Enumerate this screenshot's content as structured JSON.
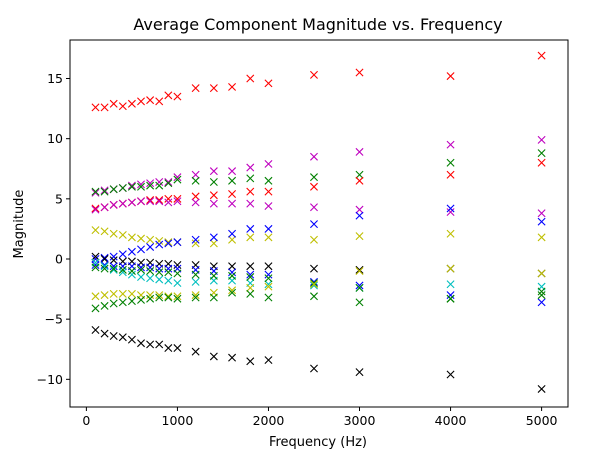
{
  "chart_data": {
    "type": "scatter",
    "title": "Average Component Magnitude vs. Frequency",
    "xlabel": "Frequency (Hz)",
    "ylabel": "Magnitude",
    "xlim": [
      -180,
      5290
    ],
    "ylim": [
      -12.3,
      18.2
    ],
    "xticks": [
      0,
      1000,
      2000,
      3000,
      4000,
      5000
    ],
    "xtick_labels": [
      "0",
      "1000",
      "2000",
      "3000",
      "4000",
      "5000"
    ],
    "yticks": [
      -10,
      -5,
      0,
      5,
      10,
      15
    ],
    "ytick_labels": [
      "−10",
      "−5",
      "0",
      "5",
      "10",
      "15"
    ],
    "grid": false,
    "marker": "x",
    "x": [
      100,
      200,
      300,
      400,
      500,
      600,
      700,
      800,
      900,
      1000,
      1200,
      1400,
      1600,
      1800,
      2000,
      2500,
      3000,
      4000,
      5000
    ],
    "series": [
      {
        "color": "#ff0000",
        "values": [
          12.6,
          12.6,
          12.9,
          12.7,
          12.9,
          13.1,
          13.2,
          13.1,
          13.6,
          13.5,
          14.2,
          14.2,
          14.3,
          15.0,
          14.6,
          15.3,
          15.5,
          15.2,
          16.9
        ]
      },
      {
        "color": "#bf00bf",
        "values": [
          5.5,
          5.7,
          5.8,
          5.9,
          6.1,
          6.2,
          6.3,
          6.4,
          6.4,
          6.8,
          7.0,
          7.3,
          7.3,
          7.6,
          7.9,
          8.5,
          8.9,
          9.5,
          9.9
        ]
      },
      {
        "color": "#008000",
        "values": [
          5.6,
          5.6,
          5.8,
          5.9,
          6.0,
          6.0,
          6.1,
          6.1,
          6.3,
          6.6,
          6.5,
          6.4,
          6.5,
          6.7,
          6.5,
          6.8,
          7.0,
          8.0,
          8.8
        ]
      },
      {
        "color": "#ff0000",
        "values": [
          4.2,
          4.3,
          4.5,
          4.6,
          4.7,
          4.8,
          4.9,
          4.9,
          5.0,
          5.0,
          5.2,
          5.3,
          5.4,
          5.6,
          5.6,
          6.0,
          6.5,
          7.0,
          8.0
        ]
      },
      {
        "color": "#bf00bf",
        "values": [
          4.1,
          4.3,
          4.5,
          4.6,
          4.7,
          4.8,
          4.8,
          4.8,
          4.7,
          4.8,
          4.7,
          4.6,
          4.6,
          4.6,
          4.4,
          4.3,
          4.1,
          3.9,
          3.8
        ]
      },
      {
        "color": "#bfbf00",
        "values": [
          2.4,
          2.3,
          2.1,
          2.0,
          1.8,
          1.7,
          1.6,
          1.5,
          1.4,
          1.4,
          1.3,
          1.3,
          1.6,
          1.8,
          1.8,
          1.6,
          1.9,
          2.1,
          1.8
        ]
      },
      {
        "color": "#0000ff",
        "values": [
          0.0,
          0.1,
          0.2,
          0.4,
          0.6,
          0.8,
          1.0,
          1.2,
          1.3,
          1.4,
          1.6,
          1.8,
          2.1,
          2.5,
          2.5,
          2.9,
          3.6,
          4.2,
          3.1
        ]
      },
      {
        "color": "#000000",
        "values": [
          0.2,
          0.0,
          -0.1,
          -0.2,
          -0.2,
          -0.3,
          -0.3,
          -0.4,
          -0.4,
          -0.5,
          -0.5,
          -0.6,
          -0.6,
          -0.6,
          -0.6,
          -0.8,
          -0.9,
          -0.8,
          -1.2
        ]
      },
      {
        "color": "#0000ff",
        "values": [
          -0.5,
          -0.5,
          -0.6,
          -0.6,
          -0.6,
          -0.7,
          -0.7,
          -0.8,
          -0.8,
          -0.8,
          -0.9,
          -1.0,
          -1.1,
          -1.3,
          -1.3,
          -1.9,
          -2.2,
          -3.0,
          -3.6
        ]
      },
      {
        "color": "#00bfbf",
        "values": [
          -0.3,
          -0.6,
          -0.9,
          -1.1,
          -1.3,
          -1.5,
          -1.6,
          -1.7,
          -1.8,
          -2.0,
          -1.9,
          -1.8,
          -1.8,
          -2.0,
          -2.1,
          -2.2,
          -2.4,
          -2.1,
          -2.3
        ]
      },
      {
        "color": "#008000",
        "values": [
          -0.7,
          -0.8,
          -0.8,
          -0.9,
          -1.0,
          -0.9,
          -1.0,
          -1.1,
          -1.1,
          -1.2,
          -1.3,
          -1.4,
          -1.4,
          -1.5,
          -1.6,
          -2.0,
          -2.4,
          -3.3,
          -3.0
        ]
      },
      {
        "color": "#bfbf00",
        "values": [
          -3.1,
          -3.0,
          -2.9,
          -2.9,
          -2.9,
          -3.0,
          -3.0,
          -3.0,
          -3.1,
          -3.1,
          -3.0,
          -2.8,
          -2.6,
          -2.4,
          -2.3,
          -2.1,
          -1.0,
          -0.8,
          -1.2
        ]
      },
      {
        "color": "#008000",
        "values": [
          -4.1,
          -3.9,
          -3.7,
          -3.6,
          -3.5,
          -3.4,
          -3.3,
          -3.2,
          -3.2,
          -3.3,
          -3.2,
          -3.2,
          -2.8,
          -2.9,
          -3.2,
          -3.1,
          -3.6,
          -3.3,
          -2.7
        ]
      },
      {
        "color": "#000000",
        "values": [
          -5.9,
          -6.2,
          -6.4,
          -6.5,
          -6.7,
          -7.0,
          -7.1,
          -7.1,
          -7.4,
          -7.4,
          -7.7,
          -8.1,
          -8.2,
          -8.5,
          -8.4,
          -9.1,
          -9.4,
          -9.6,
          -10.8
        ]
      }
    ]
  }
}
